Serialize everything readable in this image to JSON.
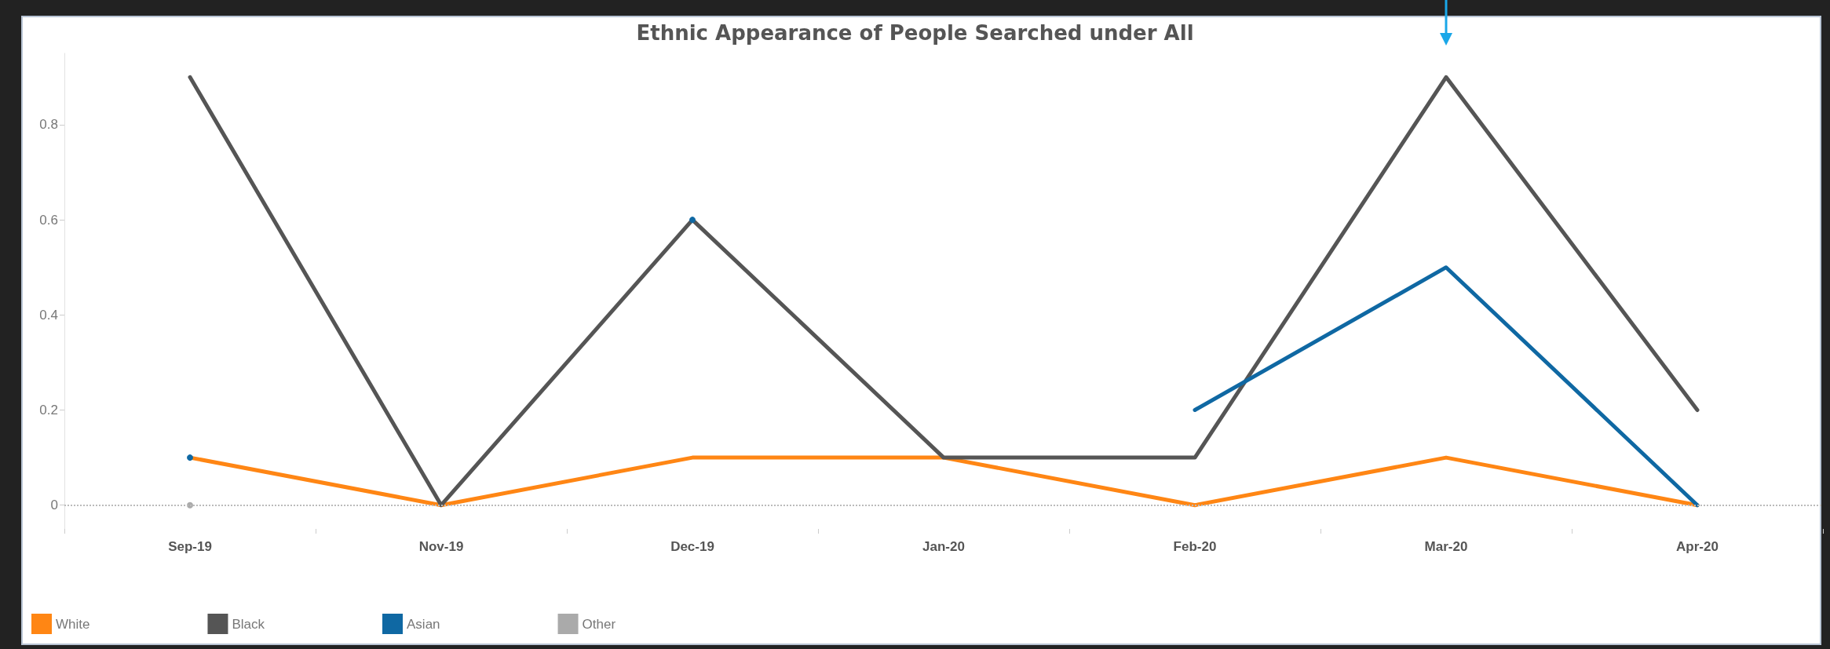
{
  "chart_data": {
    "type": "line",
    "title": "Ethnic Appearance of People Searched under All",
    "categories": [
      "Sep-19",
      "Nov-19",
      "Dec-19",
      "Jan-20",
      "Feb-20",
      "Mar-20",
      "Apr-20"
    ],
    "series": [
      {
        "name": "White",
        "color": "#ff8614",
        "values": [
          0.1,
          0,
          0.1,
          0.1,
          0,
          0.1,
          0
        ]
      },
      {
        "name": "Black",
        "color": "#555555",
        "values": [
          0.9,
          0,
          0.6,
          0.1,
          0.1,
          0.9,
          0.2
        ]
      },
      {
        "name": "Asian",
        "color": "#0f68a3",
        "values": [
          0.1,
          null,
          0.6,
          null,
          0.2,
          0.5,
          0
        ]
      },
      {
        "name": "Other",
        "color": "#aaaaaa",
        "marker": "circle",
        "values": [
          0,
          null,
          null,
          null,
          null,
          null,
          null
        ]
      }
    ],
    "ylim": [
      -0.05,
      0.95
    ],
    "yticks": [
      0,
      0.2,
      0.4,
      0.6,
      0.8
    ],
    "ref_lines": [
      {
        "axis": "y",
        "value": 0,
        "line_style": "dotted",
        "color": "#bbbbbb"
      }
    ],
    "legend": "bottom left",
    "line_style": "solid"
  }
}
